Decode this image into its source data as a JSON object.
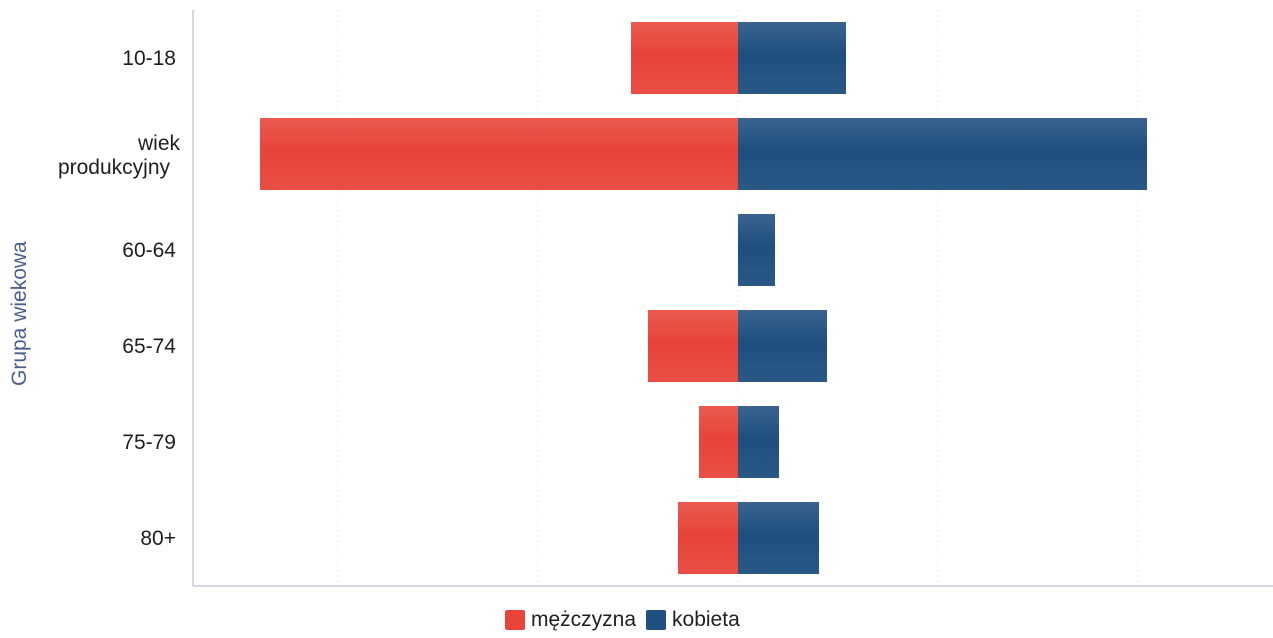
{
  "chart_data": {
    "type": "bar",
    "orientation": "horizontal-diverging",
    "ylabel": "Grupa wiekowa",
    "xlabel": "",
    "categories": [
      "10-18",
      "wiek produkcyjny",
      "60-64",
      "65-74",
      "75-79",
      "80+"
    ],
    "series": [
      {
        "name": "mężczyzna",
        "color": "#e8443a",
        "values": [
          -107,
          -478,
          0,
          -90,
          -39,
          -60
        ]
      },
      {
        "name": "kobieta",
        "color": "#1f4f7f",
        "values": [
          108,
          409,
          37,
          89,
          41,
          81
        ]
      }
    ],
    "xlim": [
      -545,
      535
    ],
    "grid": true,
    "legend_position": "bottom-center"
  }
}
